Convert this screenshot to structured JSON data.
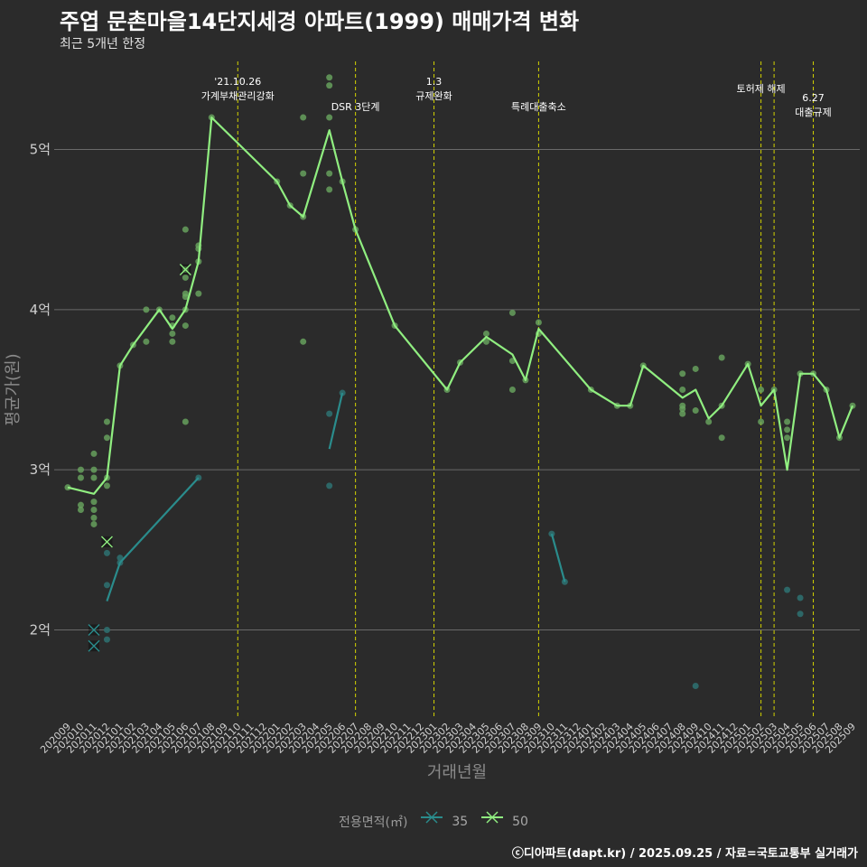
{
  "title": "주엽 문촌마을14단지세경 아파트(1999) 매매가격 변화",
  "subtitle": "최근 5개년 한정",
  "caption": "ⓒ디아파트(dapt.kr) / 2025.09.25 / 자료=국토교통부 실거래가",
  "colors": {
    "background": "#2b2b2b",
    "grid": "#6a6a6a",
    "series_35": "#2a8c8c",
    "series_50": "#90ee80",
    "points_35": "#2e6e6e",
    "points_50": "#6aa860",
    "event_line": "#d4d400"
  },
  "chart_data": {
    "type": "line",
    "xlabel": "거래년월",
    "ylabel": "평균가(원)",
    "x_ticks": [
      "202009",
      "202010",
      "202011",
      "202012",
      "202101",
      "202102",
      "202103",
      "202104",
      "202105",
      "202106",
      "202107",
      "202108",
      "202109",
      "202110",
      "202111",
      "202112",
      "202201",
      "202202",
      "202203",
      "202204",
      "202205",
      "202206",
      "202207",
      "202208",
      "202209",
      "202210",
      "202211",
      "202212",
      "202301",
      "202302",
      "202303",
      "202304",
      "202305",
      "202306",
      "202307",
      "202308",
      "202309",
      "202310",
      "202311",
      "202312",
      "202401",
      "202402",
      "202403",
      "202404",
      "202405",
      "202406",
      "202407",
      "202408",
      "202409",
      "202410",
      "202411",
      "202412",
      "202501",
      "202502",
      "202503",
      "202504",
      "202505",
      "202506",
      "202507",
      "202508",
      "202509"
    ],
    "y_ticks": [
      {
        "value": 2,
        "label": "2억"
      },
      {
        "value": 3,
        "label": "3억"
      },
      {
        "value": 4,
        "label": "4억"
      },
      {
        "value": 5,
        "label": "5억"
      }
    ],
    "ylim": [
      1.45,
      5.55
    ],
    "y_unit": "억",
    "legend": {
      "title": "전용면적(㎡)",
      "entries": [
        "35",
        "50"
      ]
    },
    "series": [
      {
        "name": "35",
        "line": [
          [
            3,
            2.18
          ],
          [
            4,
            2.42
          ],
          [
            10,
            2.95
          ]
        ],
        "line2": [
          [
            20,
            3.13
          ],
          [
            21,
            3.48
          ]
        ],
        "line3": [
          [
            37,
            2.6
          ],
          [
            38,
            2.3
          ]
        ]
      },
      {
        "name": "50",
        "line": [
          [
            0,
            2.89
          ],
          [
            2,
            2.85
          ],
          [
            3,
            2.95
          ],
          [
            4,
            3.65
          ],
          [
            5,
            3.78
          ],
          [
            7,
            4.0
          ],
          [
            8,
            3.88
          ],
          [
            9,
            4.0
          ],
          [
            10,
            4.3
          ],
          [
            11,
            5.2
          ],
          [
            16,
            4.8
          ],
          [
            17,
            4.65
          ],
          [
            18,
            4.58
          ],
          [
            20,
            5.12
          ],
          [
            21,
            4.8
          ],
          [
            22,
            4.5
          ],
          [
            25,
            3.9
          ],
          [
            29,
            3.5
          ],
          [
            30,
            3.67
          ],
          [
            32,
            3.83
          ],
          [
            34,
            3.72
          ],
          [
            35,
            3.56
          ],
          [
            36,
            3.88
          ],
          [
            40,
            3.5
          ],
          [
            42,
            3.4
          ],
          [
            43,
            3.4
          ],
          [
            44,
            3.65
          ],
          [
            47,
            3.45
          ],
          [
            48,
            3.5
          ],
          [
            49,
            3.32
          ],
          [
            50,
            3.4
          ],
          [
            52,
            3.66
          ],
          [
            53,
            3.4
          ],
          [
            54,
            3.5
          ],
          [
            55,
            3.0
          ],
          [
            56,
            3.6
          ],
          [
            57,
            3.6
          ],
          [
            58,
            3.5
          ],
          [
            59,
            3.2
          ],
          [
            60,
            3.4
          ]
        ]
      }
    ],
    "points_50": [
      [
        0,
        2.89
      ],
      [
        1,
        2.95
      ],
      [
        1,
        3.0
      ],
      [
        1,
        2.78
      ],
      [
        1,
        2.75
      ],
      [
        2,
        3.1
      ],
      [
        2,
        3.0
      ],
      [
        2,
        2.95
      ],
      [
        2,
        2.8
      ],
      [
        2,
        2.75
      ],
      [
        2,
        2.7
      ],
      [
        2,
        2.66
      ],
      [
        3,
        3.3
      ],
      [
        3,
        3.2
      ],
      [
        3,
        2.95
      ],
      [
        3,
        2.9
      ],
      [
        4,
        3.65
      ],
      [
        5,
        3.78
      ],
      [
        6,
        3.8
      ],
      [
        6,
        4.0
      ],
      [
        7,
        4.0
      ],
      [
        8,
        3.95
      ],
      [
        8,
        3.9
      ],
      [
        8,
        3.85
      ],
      [
        8,
        3.8
      ],
      [
        9,
        4.5
      ],
      [
        9,
        4.25
      ],
      [
        9,
        4.2
      ],
      [
        9,
        4.1
      ],
      [
        9,
        4.08
      ],
      [
        9,
        4.0
      ],
      [
        9,
        3.9
      ],
      [
        9,
        3.3
      ],
      [
        10,
        4.4
      ],
      [
        10,
        4.38
      ],
      [
        10,
        4.3
      ],
      [
        10,
        4.1
      ],
      [
        11,
        5.2
      ],
      [
        16,
        4.8
      ],
      [
        17,
        4.65
      ],
      [
        18,
        5.2
      ],
      [
        18,
        4.85
      ],
      [
        18,
        4.58
      ],
      [
        18,
        3.8
      ],
      [
        20,
        5.45
      ],
      [
        20,
        5.4
      ],
      [
        20,
        5.2
      ],
      [
        20,
        4.85
      ],
      [
        20,
        4.75
      ],
      [
        21,
        4.8
      ],
      [
        22,
        4.5
      ],
      [
        25,
        3.9
      ],
      [
        29,
        3.5
      ],
      [
        30,
        3.67
      ],
      [
        32,
        3.85
      ],
      [
        32,
        3.8
      ],
      [
        34,
        3.98
      ],
      [
        34,
        3.68
      ],
      [
        34,
        3.5
      ],
      [
        35,
        3.56
      ],
      [
        36,
        3.92
      ],
      [
        36,
        3.85
      ],
      [
        40,
        3.5
      ],
      [
        42,
        3.4
      ],
      [
        43,
        3.4
      ],
      [
        44,
        3.65
      ],
      [
        47,
        3.6
      ],
      [
        47,
        3.5
      ],
      [
        47,
        3.4
      ],
      [
        47,
        3.38
      ],
      [
        47,
        3.35
      ],
      [
        48,
        3.63
      ],
      [
        48,
        3.37
      ],
      [
        49,
        3.3
      ],
      [
        50,
        3.7
      ],
      [
        50,
        3.4
      ],
      [
        50,
        3.2
      ],
      [
        52,
        3.66
      ],
      [
        53,
        3.5
      ],
      [
        53,
        3.3
      ],
      [
        54,
        3.5
      ],
      [
        55,
        3.3
      ],
      [
        55,
        3.25
      ],
      [
        55,
        3.2
      ],
      [
        56,
        3.6
      ],
      [
        57,
        3.6
      ],
      [
        58,
        3.5
      ],
      [
        59,
        3.2
      ],
      [
        60,
        3.4
      ]
    ],
    "points_35": [
      [
        3,
        2.48
      ],
      [
        3,
        2.28
      ],
      [
        3,
        2.0
      ],
      [
        3,
        1.94
      ],
      [
        4,
        2.45
      ],
      [
        4,
        2.42
      ],
      [
        10,
        2.95
      ],
      [
        20,
        3.35
      ],
      [
        20,
        2.9
      ],
      [
        21,
        3.48
      ],
      [
        37,
        2.6
      ],
      [
        38,
        2.3
      ],
      [
        48,
        1.65
      ],
      [
        55,
        2.25
      ],
      [
        56,
        2.2
      ],
      [
        56,
        2.1
      ]
    ],
    "cancelled_points": [
      {
        "series": "35",
        "x": 2,
        "y": 2.0
      },
      {
        "series": "35",
        "x": 2,
        "y": 1.9
      },
      {
        "series": "50",
        "x": 3,
        "y": 2.55
      },
      {
        "series": "50",
        "x": 9,
        "y": 4.25
      }
    ],
    "events": [
      {
        "x": 13,
        "label1": "'21.10.26",
        "label2": "가계부채관리강화"
      },
      {
        "x": 22,
        "label1": "",
        "label2": "DSR 3단계"
      },
      {
        "x": 28,
        "label1": "1.3",
        "label2": "규제완화"
      },
      {
        "x": 36,
        "label1": "",
        "label2": "특례대출축소"
      },
      {
        "x": 53,
        "label1": "",
        "label2": "토허제 해제"
      },
      {
        "x": 54,
        "label1": "",
        "label2": ""
      },
      {
        "x": 57,
        "label1": "6.27",
        "label2": "대출규제"
      }
    ]
  }
}
